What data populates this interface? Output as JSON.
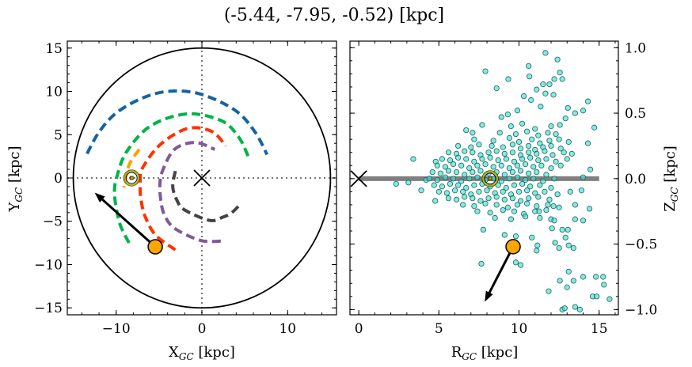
{
  "title": "(-5.44, -7.95, -0.52) [kpc]",
  "colors": {
    "blue_arm": "#1464a5",
    "green_arm": "#00b347",
    "orange_arm": "#ffa000",
    "red_arm": "#ff3300",
    "purple_arm": "#7f5a9a",
    "gray_arm": "#444444",
    "star": "#ffa500",
    "sun": "#b0b000",
    "scatter_fill": "#40e0d0",
    "scatter_edge": "#206060",
    "plane": "#808080"
  },
  "chart_data": [
    {
      "type": "line",
      "xlabel": "X",
      "xlabel_sub": "GC",
      "xlabel_unit": " [kpc]",
      "ylabel": "Y",
      "ylabel_sub": "GC",
      "ylabel_unit": " [kpc]",
      "xlim": [
        -15.7,
        15.7
      ],
      "ylim": [
        -15.8,
        15.8
      ],
      "xticks": [
        -10,
        0,
        10
      ],
      "xtick_labels": [
        "−10",
        "0",
        "10"
      ],
      "yticks": [
        -15,
        -10,
        -5,
        0,
        5,
        10,
        15
      ],
      "ytick_labels": [
        "−15",
        "−10",
        "−5",
        "0",
        "5",
        "10",
        "15"
      ],
      "grid": false,
      "boundary_circle_radius": 15,
      "galactic_center": [
        0,
        0
      ],
      "sun": [
        -8.2,
        0
      ],
      "star": [
        -5.44,
        -7.95
      ],
      "velocity_arrow_tip": [
        -12.5,
        -1.7
      ],
      "series": [
        {
          "color_key": "blue_arm",
          "points": [
            [
              -13.4,
              2.8
            ],
            [
              -12.0,
              5.3
            ],
            [
              -10.0,
              7.5
            ],
            [
              -7.0,
              9.2
            ],
            [
              -3.9,
              10.0
            ],
            [
              -0.2,
              9.7
            ],
            [
              3.9,
              7.8
            ],
            [
              6.2,
              5.3
            ],
            [
              7.6,
              2.7
            ]
          ]
        },
        {
          "color_key": "green_arm",
          "points": [
            [
              -8.5,
              -7.5
            ],
            [
              -9.5,
              -5.5
            ],
            [
              -10.0,
              -3.4
            ],
            [
              -10.2,
              -1.5
            ],
            [
              -9.9,
              0.2
            ],
            [
              -8.8,
              3.0
            ],
            [
              -6.0,
              6.0
            ],
            [
              -1.7,
              7.4
            ],
            [
              2.3,
              6.6
            ],
            [
              4.3,
              4.7
            ],
            [
              5.4,
              2.5
            ]
          ]
        },
        {
          "color_key": "orange_arm",
          "points": [
            [
              -7.3,
              3.3
            ],
            [
              -8.5,
              1.5
            ],
            [
              -9.1,
              -1.1
            ]
          ]
        },
        {
          "color_key": "red_arm",
          "points": [
            [
              -3.1,
              -8.3
            ],
            [
              -5.4,
              -6.6
            ],
            [
              -6.6,
              -4.5
            ],
            [
              -7.1,
              -2.5
            ],
            [
              -7.2,
              -0.5
            ],
            [
              -6.9,
              1.2
            ],
            [
              -4.8,
              3.9
            ],
            [
              -1.7,
              5.7
            ],
            [
              1.1,
              5.4
            ],
            [
              2.8,
              3.7
            ]
          ]
        },
        {
          "color_key": "purple_arm",
          "points": [
            [
              2.2,
              -7.3
            ],
            [
              -0.2,
              -7.2
            ],
            [
              -3.2,
              -5.8
            ],
            [
              -4.4,
              -4.2
            ],
            [
              -4.8,
              -2.5
            ],
            [
              -4.9,
              -0.8
            ],
            [
              -4.6,
              0.8
            ],
            [
              -3.2,
              3.3
            ],
            [
              -0.8,
              4.1
            ],
            [
              1.5,
              3.3
            ]
          ]
        },
        {
          "color_key": "gray_arm",
          "points": [
            [
              -3.1,
              0.8
            ],
            [
              -3.4,
              -1.0
            ],
            [
              -2.9,
              -2.6
            ],
            [
              -2.0,
              -3.7
            ],
            [
              0.9,
              -4.9
            ],
            [
              2.5,
              -4.5
            ],
            [
              3.5,
              -4.0
            ],
            [
              4.6,
              -2.9
            ]
          ]
        }
      ]
    },
    {
      "type": "scatter",
      "xlabel": "R",
      "xlabel_sub": "GC",
      "xlabel_unit": " [kpc]",
      "ylabel": "Z",
      "ylabel_sub": "GC",
      "ylabel_unit": " [kpc]",
      "xlim": [
        -0.55,
        16.2
      ],
      "ylim": [
        -1.04,
        1.05
      ],
      "xticks": [
        0,
        5,
        10,
        15
      ],
      "xtick_labels": [
        "0",
        "5",
        "10",
        "15"
      ],
      "yticks": [
        -1.0,
        -0.5,
        0.0,
        0.5,
        1.0
      ],
      "ytick_labels": [
        "−1.0",
        "−0.5",
        "0.0",
        "0.5",
        "1.0"
      ],
      "grid": false,
      "galactic_plane": [
        [
          0,
          0
        ],
        [
          15,
          0
        ]
      ],
      "galactic_center": [
        0,
        0
      ],
      "sun": [
        8.2,
        0
      ],
      "star": [
        9.63,
        -0.52
      ],
      "velocity_arrow_tip": [
        7.86,
        -0.94
      ],
      "points": [
        [
          11.65,
          0.96
        ],
        [
          12.4,
          0.91
        ],
        [
          10.6,
          0.86
        ],
        [
          7.9,
          0.82
        ],
        [
          12.55,
          0.81
        ],
        [
          10.65,
          0.78
        ],
        [
          9.33,
          0.76
        ],
        [
          12.2,
          0.76
        ],
        [
          12.7,
          0.76
        ],
        [
          8.6,
          0.69
        ],
        [
          11.5,
          0.72
        ],
        [
          11.9,
          0.72
        ],
        [
          11.1,
          0.68
        ],
        [
          10.3,
          0.63
        ],
        [
          10.75,
          0.6
        ],
        [
          12.15,
          0.64
        ],
        [
          11.65,
          0.65
        ],
        [
          14.3,
          0.59
        ],
        [
          11.35,
          0.55
        ],
        [
          14.0,
          0.52
        ],
        [
          9.9,
          0.52
        ],
        [
          8.9,
          0.47
        ],
        [
          9.3,
          0.49
        ],
        [
          14.7,
          0.39
        ],
        [
          6.7,
          0.37
        ],
        [
          7.1,
          0.35
        ],
        [
          7.7,
          0.41
        ],
        [
          13.05,
          0.54
        ],
        [
          13.5,
          0.5
        ],
        [
          12.9,
          0.46
        ],
        [
          12.55,
          0.41
        ],
        [
          14.3,
          0.27
        ],
        [
          14.45,
          0.07
        ],
        [
          14.0,
          0.01
        ],
        [
          13.9,
          -0.09
        ],
        [
          14.4,
          -0.23
        ],
        [
          14.0,
          -0.32
        ],
        [
          13.5,
          -0.2
        ],
        [
          13.2,
          -0.1
        ],
        [
          3.4,
          0.15
        ],
        [
          2.33,
          -0.04
        ],
        [
          3.1,
          -0.03
        ],
        [
          3.9,
          -0.09
        ],
        [
          4.77,
          -0.17
        ],
        [
          4.8,
          0.13
        ],
        [
          4.2,
          -0.01
        ],
        [
          7.77,
          -0.39
        ],
        [
          9.1,
          -0.43
        ],
        [
          9.8,
          -0.44
        ],
        [
          7.65,
          -0.65
        ],
        [
          9.8,
          -0.64
        ],
        [
          10.1,
          -0.66
        ],
        [
          10.8,
          -0.45
        ],
        [
          11.15,
          -0.51
        ],
        [
          11.1,
          -0.55
        ],
        [
          11.85,
          -0.86
        ],
        [
          12.25,
          -0.49
        ],
        [
          12.5,
          -0.53
        ],
        [
          13.1,
          -0.51
        ],
        [
          13.4,
          -0.53
        ],
        [
          13.1,
          -0.71
        ],
        [
          12.55,
          -0.78
        ],
        [
          13.4,
          -0.78
        ],
        [
          13.0,
          -0.83
        ],
        [
          14.0,
          -0.75
        ],
        [
          14.8,
          -0.75
        ],
        [
          15.25,
          -0.75
        ],
        [
          15.3,
          -0.81
        ],
        [
          14.6,
          -0.9
        ],
        [
          14.85,
          -0.9
        ],
        [
          15.65,
          -0.92
        ],
        [
          12.7,
          -1.0
        ],
        [
          12.85,
          -0.99
        ],
        [
          13.5,
          -0.98
        ],
        [
          13.8,
          -1.0
        ],
        [
          12.06,
          -0.38
        ],
        [
          12.7,
          -0.39
        ],
        [
          12.9,
          -0.45
        ],
        [
          13.5,
          -0.31
        ],
        [
          13.05,
          -0.39
        ],
        [
          11.25,
          -0.25
        ],
        [
          12.0,
          -0.31
        ],
        [
          12.15,
          -0.21
        ],
        [
          9.5,
          0.4
        ],
        [
          10.2,
          0.42
        ],
        [
          11.0,
          0.38
        ],
        [
          12.0,
          0.4
        ],
        [
          8.8,
          0.35
        ],
        [
          9.8,
          0.34
        ],
        [
          10.5,
          0.36
        ],
        [
          11.2,
          0.33
        ],
        [
          11.8,
          0.35
        ],
        [
          12.3,
          0.34
        ],
        [
          7.2,
          0.3
        ],
        [
          8.4,
          0.29
        ],
        [
          9.4,
          0.31
        ],
        [
          10.0,
          0.28
        ],
        [
          10.8,
          0.3
        ],
        [
          11.3,
          0.27
        ],
        [
          11.9,
          0.29
        ],
        [
          12.5,
          0.3
        ],
        [
          13.1,
          0.28
        ],
        [
          6.2,
          0.25
        ],
        [
          7.0,
          0.24
        ],
        [
          7.5,
          0.26
        ],
        [
          8.3,
          0.25
        ],
        [
          9.0,
          0.24
        ],
        [
          9.6,
          0.26
        ],
        [
          10.1,
          0.23
        ],
        [
          10.6,
          0.25
        ],
        [
          11.0,
          0.22
        ],
        [
          11.5,
          0.24
        ],
        [
          12.0,
          0.25
        ],
        [
          12.6,
          0.23
        ],
        [
          5.6,
          0.2
        ],
        [
          6.1,
          0.19
        ],
        [
          6.6,
          0.21
        ],
        [
          7.1,
          0.2
        ],
        [
          7.6,
          0.18
        ],
        [
          8.1,
          0.2
        ],
        [
          8.6,
          0.21
        ],
        [
          9.1,
          0.19
        ],
        [
          9.6,
          0.2
        ],
        [
          10.1,
          0.18
        ],
        [
          10.6,
          0.2
        ],
        [
          11.1,
          0.19
        ],
        [
          11.6,
          0.21
        ],
        [
          12.1,
          0.18
        ],
        [
          12.8,
          0.2
        ],
        [
          13.3,
          0.19
        ],
        [
          5.2,
          0.15
        ],
        [
          5.7,
          0.14
        ],
        [
          6.2,
          0.16
        ],
        [
          6.7,
          0.15
        ],
        [
          7.2,
          0.13
        ],
        [
          7.7,
          0.15
        ],
        [
          8.2,
          0.16
        ],
        [
          8.7,
          0.14
        ],
        [
          9.2,
          0.15
        ],
        [
          9.7,
          0.13
        ],
        [
          10.2,
          0.15
        ],
        [
          10.7,
          0.16
        ],
        [
          11.2,
          0.14
        ],
        [
          11.7,
          0.15
        ],
        [
          12.3,
          0.13
        ],
        [
          13.0,
          0.15
        ],
        [
          4.9,
          0.1
        ],
        [
          5.4,
          0.09
        ],
        [
          5.9,
          0.11
        ],
        [
          6.4,
          0.1
        ],
        [
          6.9,
          0.08
        ],
        [
          7.4,
          0.1
        ],
        [
          7.9,
          0.11
        ],
        [
          8.4,
          0.09
        ],
        [
          8.9,
          0.1
        ],
        [
          9.4,
          0.08
        ],
        [
          9.9,
          0.1
        ],
        [
          10.4,
          0.11
        ],
        [
          10.9,
          0.09
        ],
        [
          11.4,
          0.1
        ],
        [
          12.0,
          0.08
        ],
        [
          12.6,
          0.1
        ],
        [
          4.6,
          0.05
        ],
        [
          5.1,
          0.04
        ],
        [
          5.6,
          0.06
        ],
        [
          6.1,
          0.05
        ],
        [
          6.6,
          0.03
        ],
        [
          7.1,
          0.05
        ],
        [
          7.6,
          0.06
        ],
        [
          8.1,
          0.04
        ],
        [
          8.6,
          0.05
        ],
        [
          9.1,
          0.03
        ],
        [
          9.6,
          0.05
        ],
        [
          10.1,
          0.06
        ],
        [
          10.6,
          0.04
        ],
        [
          11.1,
          0.05
        ],
        [
          11.7,
          0.03
        ],
        [
          4.4,
          0.0
        ],
        [
          4.9,
          -0.01
        ],
        [
          5.4,
          0.01
        ],
        [
          5.9,
          0.0
        ],
        [
          6.4,
          -0.02
        ],
        [
          6.9,
          0.0
        ],
        [
          7.4,
          0.01
        ],
        [
          7.9,
          -0.01
        ],
        [
          8.4,
          0.0
        ],
        [
          8.9,
          -0.02
        ],
        [
          9.4,
          0.0
        ],
        [
          9.9,
          0.01
        ],
        [
          10.4,
          -0.01
        ],
        [
          10.9,
          0.0
        ],
        [
          11.5,
          -0.02
        ],
        [
          12.2,
          0.0
        ],
        [
          4.7,
          -0.05
        ],
        [
          5.2,
          -0.06
        ],
        [
          5.7,
          -0.04
        ],
        [
          6.2,
          -0.05
        ],
        [
          6.7,
          -0.07
        ],
        [
          7.2,
          -0.05
        ],
        [
          7.7,
          -0.04
        ],
        [
          8.2,
          -0.06
        ],
        [
          8.7,
          -0.05
        ],
        [
          9.2,
          -0.07
        ],
        [
          9.7,
          -0.05
        ],
        [
          10.2,
          -0.04
        ],
        [
          10.7,
          -0.06
        ],
        [
          11.3,
          -0.05
        ],
        [
          12.0,
          -0.07
        ],
        [
          5.0,
          -0.1
        ],
        [
          5.5,
          -0.11
        ],
        [
          6.0,
          -0.09
        ],
        [
          6.5,
          -0.1
        ],
        [
          7.0,
          -0.12
        ],
        [
          7.5,
          -0.1
        ],
        [
          8.0,
          -0.09
        ],
        [
          8.5,
          -0.11
        ],
        [
          9.0,
          -0.1
        ],
        [
          9.5,
          -0.12
        ],
        [
          10.0,
          -0.1
        ],
        [
          10.5,
          -0.09
        ],
        [
          11.0,
          -0.11
        ],
        [
          11.6,
          -0.1
        ],
        [
          12.4,
          -0.12
        ],
        [
          5.6,
          -0.15
        ],
        [
          6.1,
          -0.16
        ],
        [
          6.6,
          -0.14
        ],
        [
          7.1,
          -0.15
        ],
        [
          7.6,
          -0.17
        ],
        [
          8.1,
          -0.15
        ],
        [
          8.6,
          -0.14
        ],
        [
          9.1,
          -0.16
        ],
        [
          9.6,
          -0.15
        ],
        [
          10.1,
          -0.17
        ],
        [
          10.6,
          -0.15
        ],
        [
          11.2,
          -0.14
        ],
        [
          11.9,
          -0.16
        ],
        [
          6.5,
          -0.2
        ],
        [
          7.2,
          -0.21
        ],
        [
          7.9,
          -0.19
        ],
        [
          8.6,
          -0.2
        ],
        [
          9.3,
          -0.22
        ],
        [
          9.9,
          -0.2
        ],
        [
          10.5,
          -0.19
        ],
        [
          11.1,
          -0.21
        ],
        [
          11.8,
          -0.2
        ],
        [
          12.5,
          -0.22
        ],
        [
          7.4,
          -0.25
        ],
        [
          8.2,
          -0.26
        ],
        [
          9.0,
          -0.24
        ],
        [
          9.7,
          -0.25
        ],
        [
          10.3,
          -0.27
        ],
        [
          11.0,
          -0.25
        ],
        [
          11.7,
          -0.24
        ],
        [
          8.5,
          -0.3
        ],
        [
          9.5,
          -0.31
        ],
        [
          10.4,
          -0.29
        ],
        [
          11.3,
          -0.3
        ],
        [
          12.2,
          -0.32
        ]
      ]
    }
  ]
}
